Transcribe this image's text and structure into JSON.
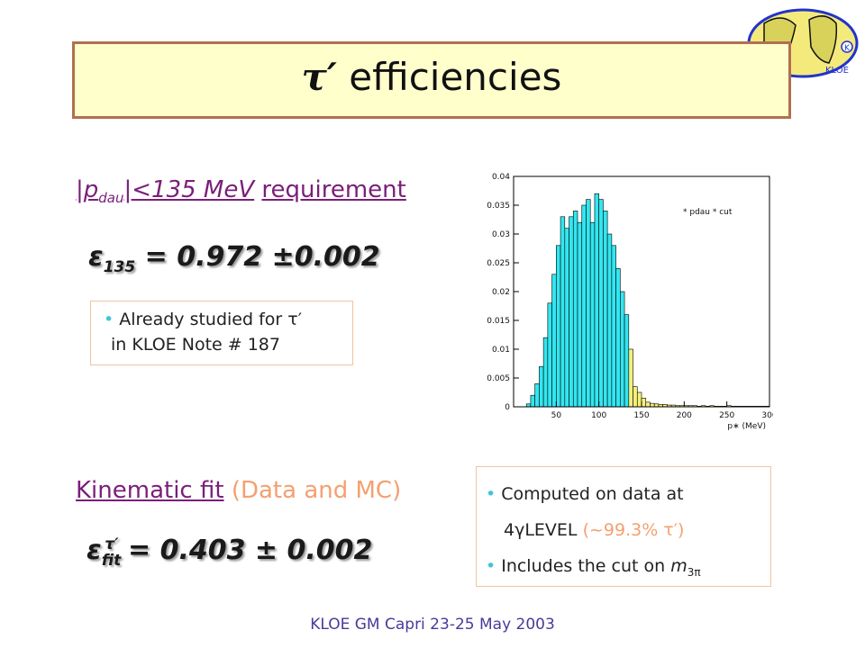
{
  "title": {
    "tau": "τ′",
    "text": "efficiencies"
  },
  "requirement": {
    "lead": "|p",
    "sub": "dau",
    "rest": "|<135 MeV",
    "tail": "requirement"
  },
  "eps135": {
    "symbol": "ε",
    "sub": "135",
    "value": "= 0.972 ±0.002"
  },
  "note1": {
    "line1": "Already studied for τ′",
    "line2": "in KLOE Note # 187"
  },
  "kinematic": {
    "label": "Kinematic fit",
    "extra": "(Data and MC)"
  },
  "epsfit": {
    "symbol": "ε",
    "sub": "fit",
    "sup": "τ′",
    "value": "= 0.403 ± 0.002"
  },
  "note2": {
    "line1": "Computed on data at",
    "line2_a": "4γLEVEL",
    "line2_b": "(~99.3% τ′)",
    "line3_a": "Includes the cut on",
    "line3_b": "m",
    "line3_sub": "3π"
  },
  "footer": "KLOE GM Capri  23-25 May 2003",
  "logo": {
    "text": "KLOE",
    "badge": "K"
  },
  "colors": {
    "accent": "#7a1f7a",
    "fill_pass": "#33e6f0",
    "fill_cut": "#f5f07a",
    "title_bg": "#ffffcc"
  },
  "chart_data": {
    "type": "bar",
    "legend_text": "* pdau * cut",
    "legend_position": "top-right",
    "xlabel": "p∗ (MeV)",
    "xlim": [
      0,
      300
    ],
    "ylim": [
      0,
      0.04
    ],
    "x_ticks": [
      "50",
      "100",
      "150",
      "200",
      "250",
      "300"
    ],
    "y_ticks": [
      "0",
      "0.005",
      "0.01",
      "0.015",
      "0.02",
      "0.025",
      "0.03",
      "0.035",
      "0.04"
    ],
    "bin_width": 5,
    "bin_start": 0,
    "cut": 135,
    "values": [
      0,
      0,
      0,
      0.0005,
      0.002,
      0.004,
      0.007,
      0.012,
      0.018,
      0.023,
      0.028,
      0.033,
      0.031,
      0.033,
      0.034,
      0.032,
      0.035,
      0.036,
      0.032,
      0.037,
      0.036,
      0.034,
      0.03,
      0.028,
      0.024,
      0.02,
      0.016,
      0.01,
      0.0035,
      0.0025,
      0.0015,
      0.0008,
      0.0006,
      0.0005,
      0.0004,
      0.0004,
      0.0003,
      0.0003,
      0.0002,
      0.0002,
      0.0002,
      0.0002,
      0.0002,
      0.0001,
      0.0002,
      0.0001,
      0.0002,
      0.0001,
      0.0001,
      0.0001,
      0.0002,
      0.0001,
      0.0001,
      0.0001,
      0.0001,
      0.0001,
      0.0001,
      0.0001,
      0.0001,
      0.0001
    ]
  }
}
